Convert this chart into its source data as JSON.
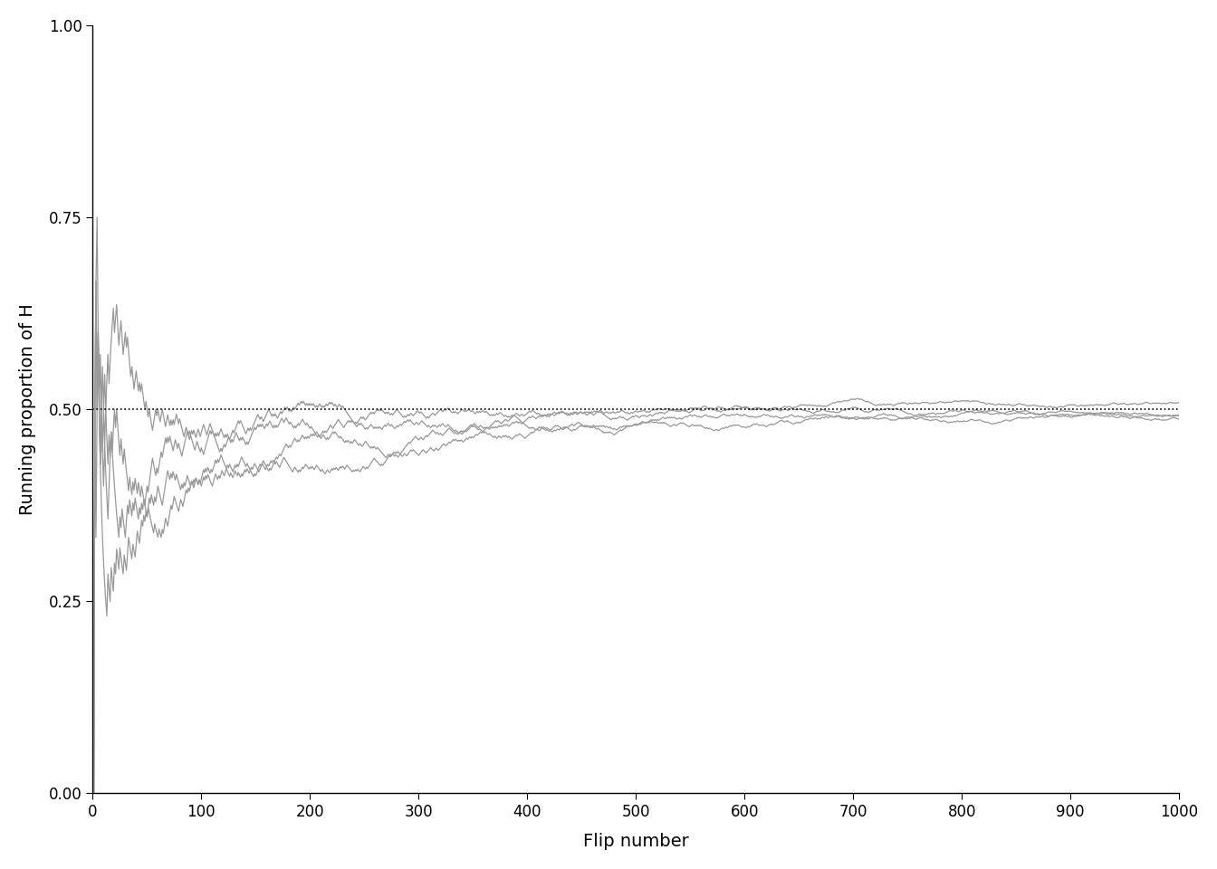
{
  "title": "",
  "xlabel": "Flip number",
  "ylabel": "Running proportion of H",
  "xlim": [
    0,
    1000
  ],
  "ylim": [
    0.0,
    1.0
  ],
  "yticks": [
    0.0,
    0.25,
    0.5,
    0.75,
    1.0
  ],
  "xticks": [
    0,
    100,
    200,
    300,
    400,
    500,
    600,
    700,
    800,
    900,
    1000
  ],
  "hline_y": 0.5,
  "hline_style": "dotted",
  "hline_color": "black",
  "line_color": "#999999",
  "line_width": 0.9,
  "n_flips": 1000,
  "n_sets": 4,
  "background_color": "#ffffff",
  "spine_color": "#000000",
  "tick_color": "#000000",
  "label_color": "#000000",
  "axis_label_fontsize": 14,
  "tick_fontsize": 12
}
